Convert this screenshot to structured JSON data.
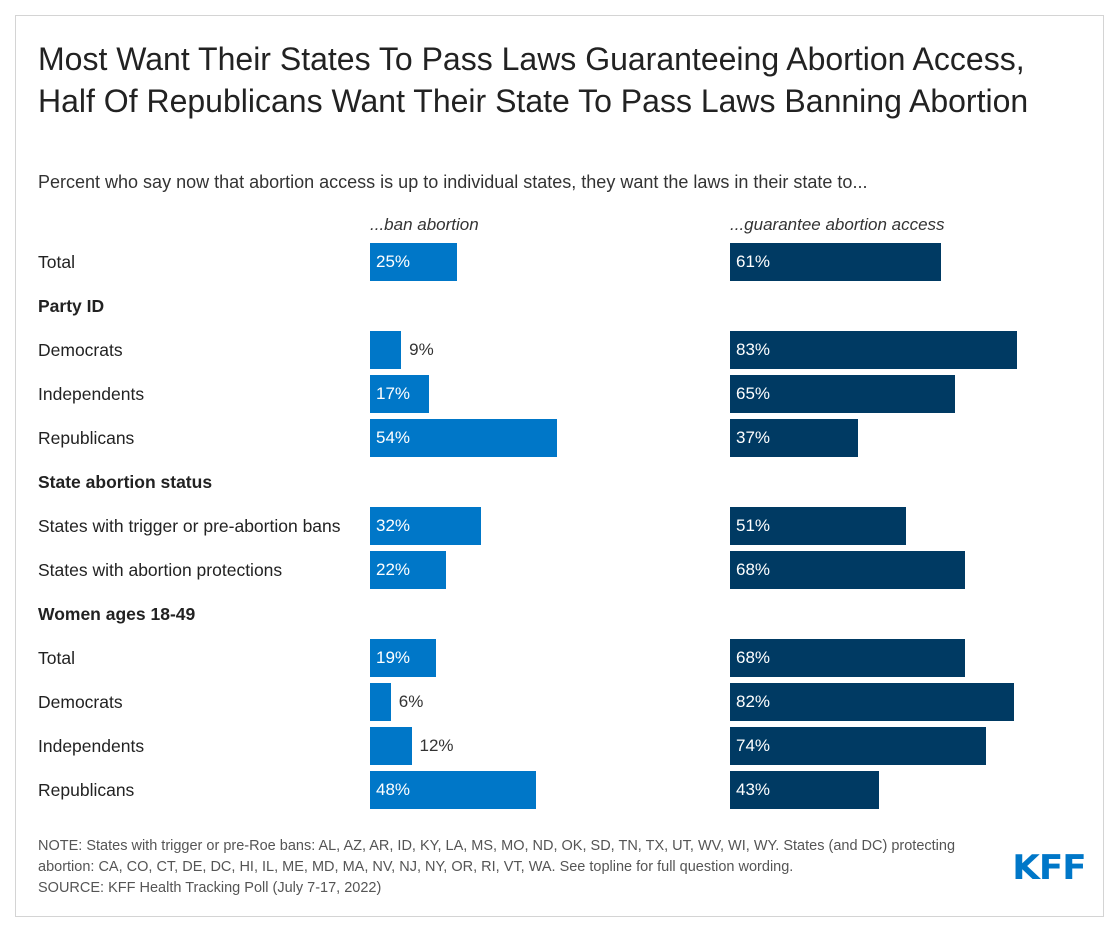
{
  "chart_data": {
    "type": "bar",
    "orientation": "horizontal",
    "title": "Most Want Their States To Pass Laws Guaranteeing Abortion Access, Half Of Republicans Want Their State To Pass Laws Banning Abortion",
    "subtitle": "Percent who say now that abortion access is up to individual states, they want the laws in their state to...",
    "series": [
      {
        "name": "...ban abortion",
        "color": "#0077c8"
      },
      {
        "name": "...guarantee abortion access",
        "color": "#003a63"
      }
    ],
    "rows": [
      {
        "label": "Total",
        "group": false,
        "values": [
          25,
          61
        ]
      },
      {
        "label": "Party ID",
        "group": true
      },
      {
        "label": "Democrats",
        "group": false,
        "values": [
          9,
          83
        ]
      },
      {
        "label": "Independents",
        "group": false,
        "values": [
          17,
          65
        ]
      },
      {
        "label": "Republicans",
        "group": false,
        "values": [
          54,
          37
        ]
      },
      {
        "label": "State abortion status",
        "group": true
      },
      {
        "label": "States with trigger or pre-abortion bans",
        "group": false,
        "values": [
          32,
          51
        ]
      },
      {
        "label": "States with abortion protections",
        "group": false,
        "values": [
          22,
          68
        ]
      },
      {
        "label": "Women ages 18-49",
        "group": true
      },
      {
        "label": "Total",
        "group": false,
        "values": [
          19,
          68
        ]
      },
      {
        "label": "Democrats",
        "group": false,
        "values": [
          6,
          82
        ]
      },
      {
        "label": "Independents",
        "group": false,
        "values": [
          12,
          74
        ]
      },
      {
        "label": "Republicans",
        "group": false,
        "values": [
          48,
          43
        ]
      }
    ],
    "value_suffix": "%"
  },
  "notes": {
    "note": "NOTE: States with trigger or pre-Roe bans: AL, AZ, AR, ID, KY, LA, MS, MO, ND, OK, SD, TN, TX, UT, WV, WI, WY. States (and DC) protecting abortion: CA, CO, CT, DE, DC, HI, IL, ME, MD, MA, NV, NJ, NY, OR, RI, VT, WA. See topline for full question wording.",
    "source": "SOURCE: KFF Health Tracking Poll (July 7-17, 2022)"
  },
  "logo": "KFF"
}
